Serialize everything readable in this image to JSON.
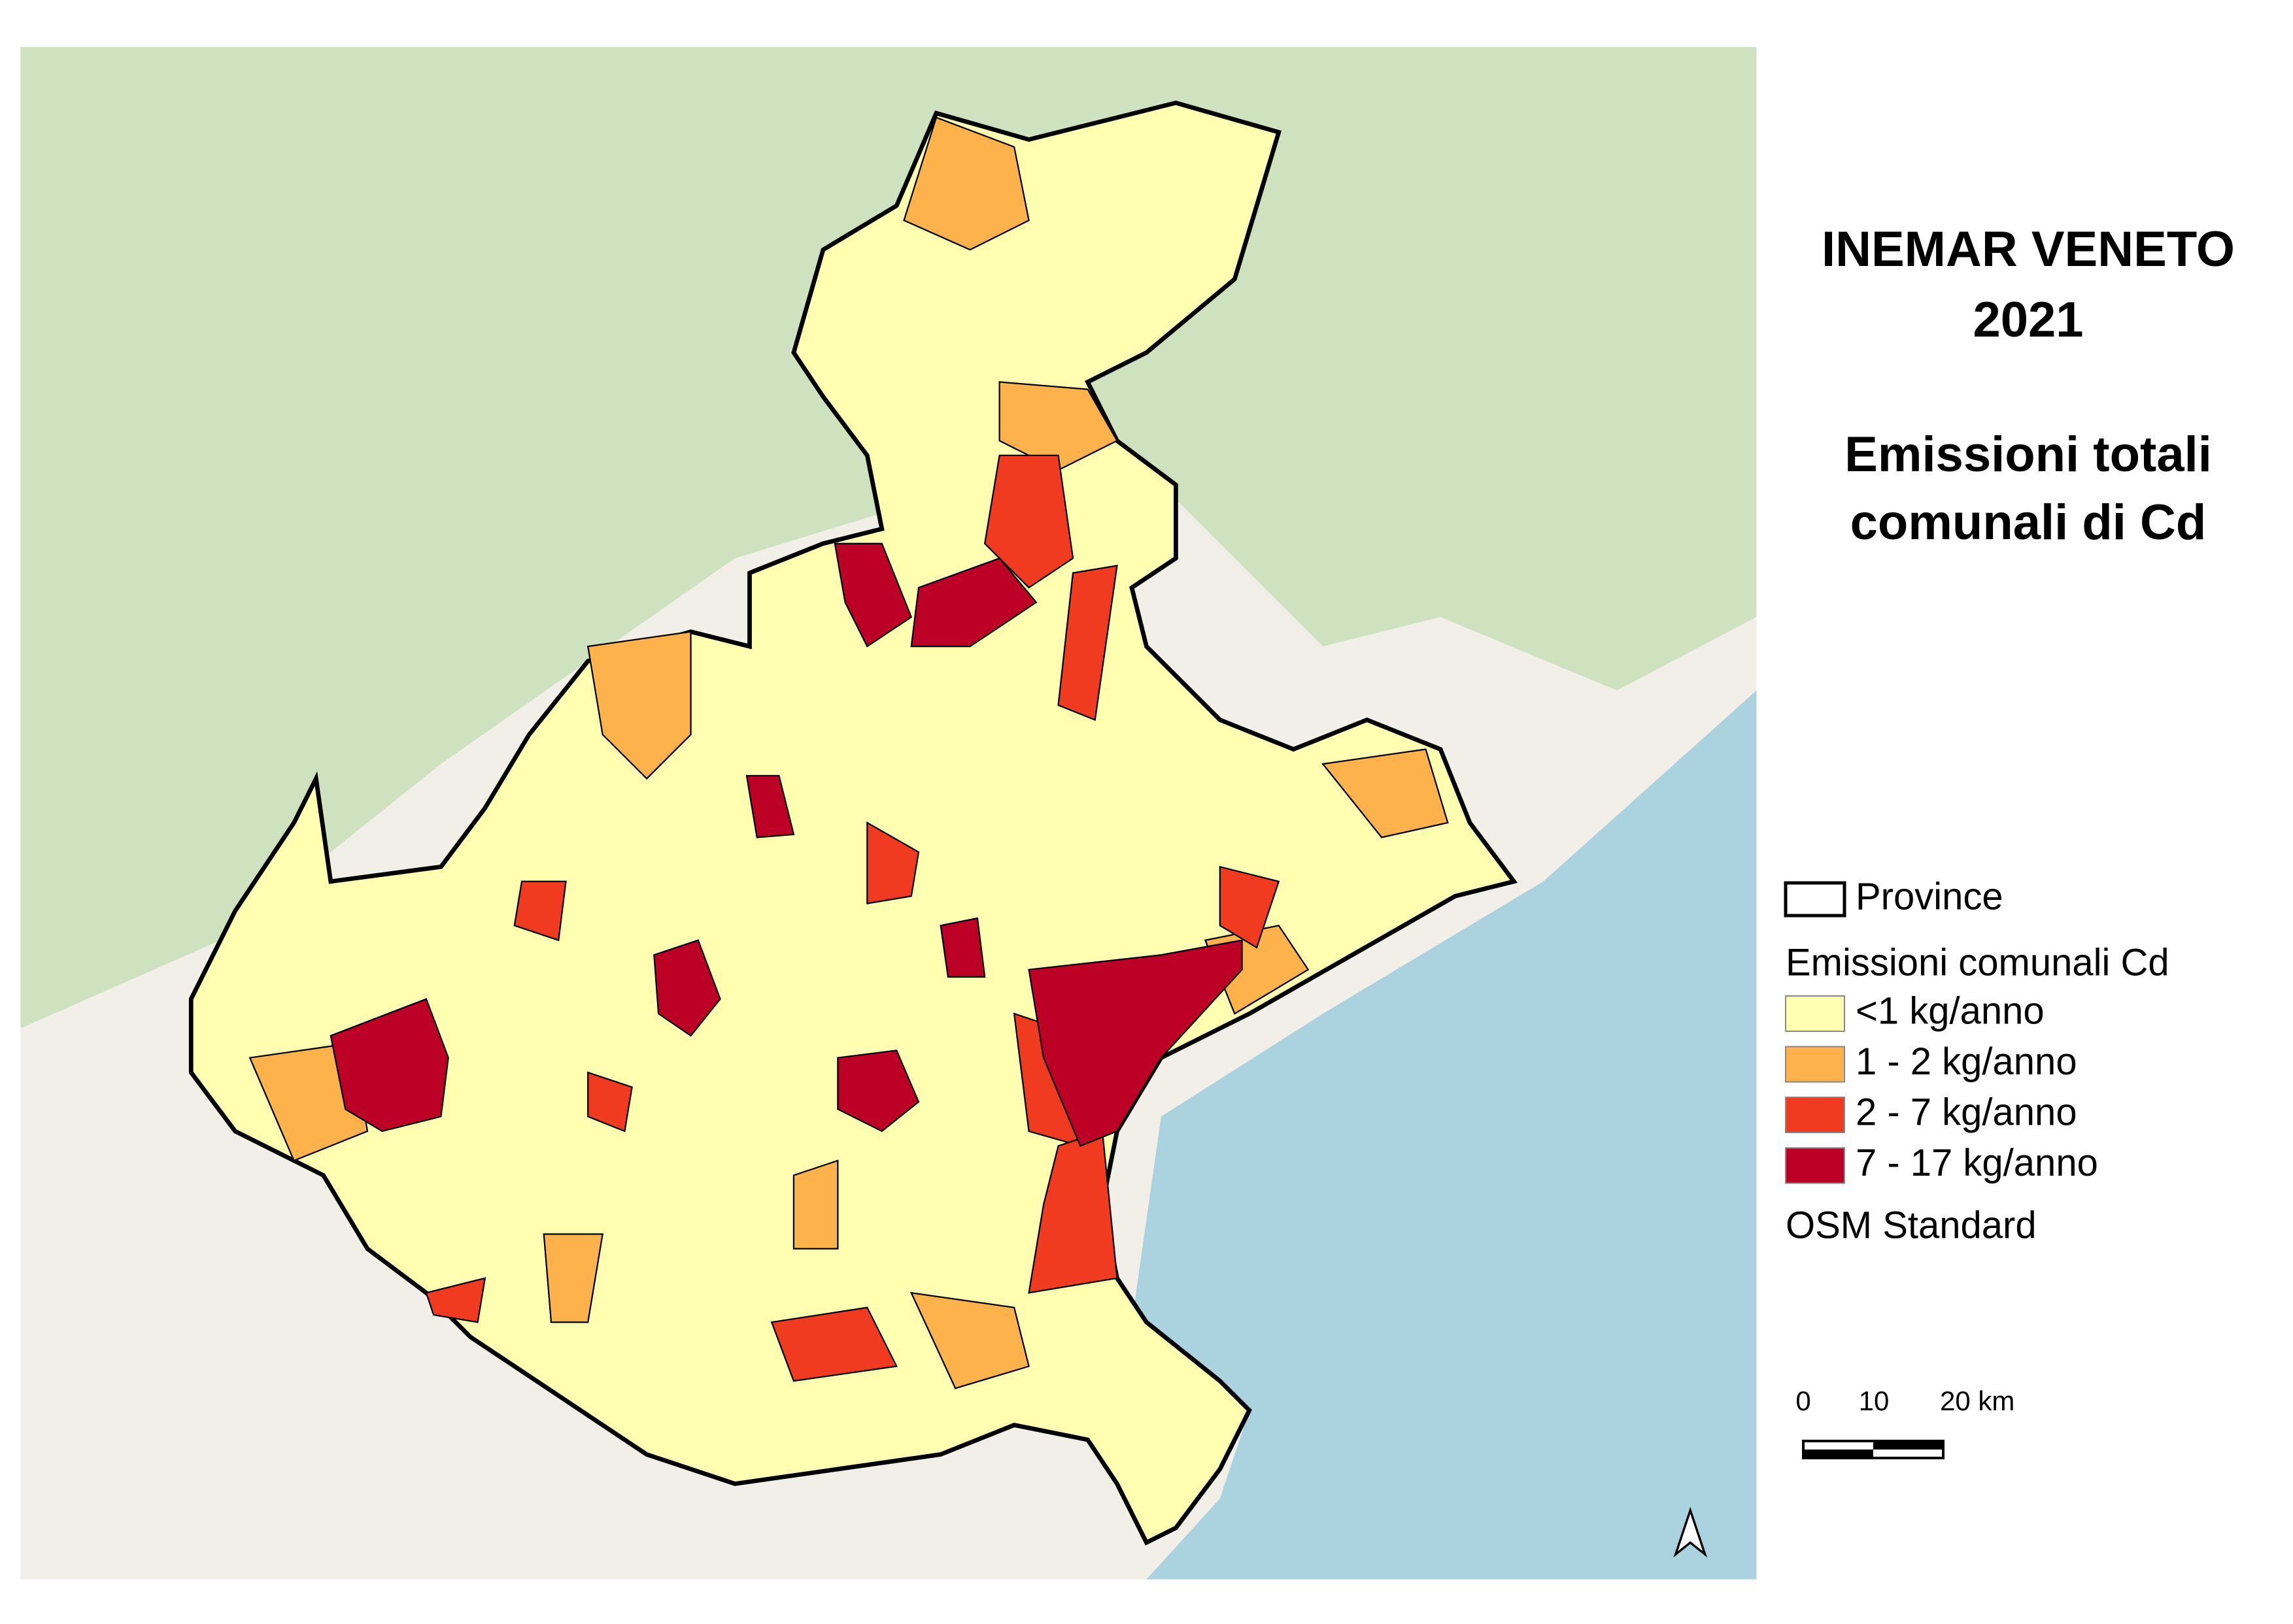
{
  "title": {
    "lines": [
      "INEMAR VENETO",
      "2021",
      "Emissioni totali",
      "comunali di Cd"
    ]
  },
  "legend": {
    "province": "Province",
    "heading": "Emissioni comunali Cd",
    "classes": [
      {
        "label": "<1 kg/anno",
        "color": "#ffffb2"
      },
      {
        "label": "1 - 2 kg/anno",
        "color": "#feb24c"
      },
      {
        "label": "2 - 7 kg/anno",
        "color": "#f03b20"
      },
      {
        "label": "7 - 17 kg/anno",
        "color": "#bd0026"
      }
    ],
    "basemap": "OSM Standard"
  },
  "scale_bar": {
    "labels": [
      "0",
      "10",
      "20 km"
    ]
  }
}
